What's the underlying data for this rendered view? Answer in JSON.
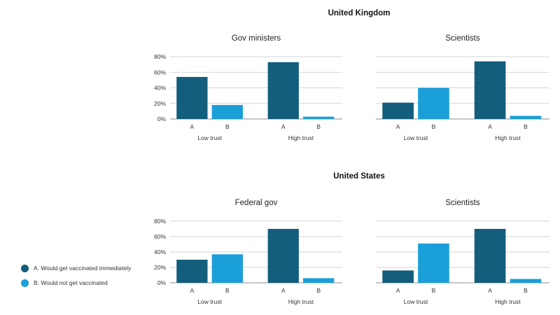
{
  "colors": {
    "A": "#135e7c",
    "B": "#1a9fd8",
    "grid": "#c9c9c9",
    "axis": "#8c8c8c"
  },
  "legend": {
    "items": [
      {
        "key": "A",
        "label": "A. Would get vaccinated immediately"
      },
      {
        "key": "B",
        "label": "B. Would not get vaccinated"
      }
    ]
  },
  "chart_data": [
    {
      "type": "bar",
      "country": "United Kingdom",
      "title": "Gov ministers",
      "groups": [
        "Low trust",
        "High trust"
      ],
      "categories": [
        "A",
        "B"
      ],
      "series": [
        {
          "group": "Low trust",
          "values": [
            54,
            18
          ]
        },
        {
          "group": "High trust",
          "values": [
            73,
            3
          ]
        }
      ],
      "yticks": [
        "80%",
        "60%",
        "40%",
        "20%",
        "0%"
      ],
      "ylim": [
        0,
        80
      ],
      "grid": true
    },
    {
      "type": "bar",
      "country": "United Kingdom",
      "title": "Scientists",
      "groups": [
        "Low trust",
        "High trust"
      ],
      "categories": [
        "A",
        "B"
      ],
      "series": [
        {
          "group": "Low trust",
          "values": [
            21,
            40
          ]
        },
        {
          "group": "High trust",
          "values": [
            74,
            4
          ]
        }
      ],
      "yticks": [
        "80%",
        "60%",
        "40%",
        "20%",
        "0%"
      ],
      "ylim": [
        0,
        80
      ],
      "grid": true
    },
    {
      "type": "bar",
      "country": "United States",
      "title": "Federal gov",
      "groups": [
        "Low trust",
        "High trust"
      ],
      "categories": [
        "A",
        "B"
      ],
      "series": [
        {
          "group": "Low trust",
          "values": [
            30,
            37
          ]
        },
        {
          "group": "High trust",
          "values": [
            70,
            6
          ]
        }
      ],
      "yticks": [
        "80%",
        "60%",
        "40%",
        "20%",
        "0%"
      ],
      "ylim": [
        0,
        80
      ],
      "grid": true
    },
    {
      "type": "bar",
      "country": "United States",
      "title": "Scientists",
      "groups": [
        "Low trust",
        "High trust"
      ],
      "categories": [
        "A",
        "B"
      ],
      "series": [
        {
          "group": "Low trust",
          "values": [
            16,
            51
          ]
        },
        {
          "group": "High trust",
          "values": [
            70,
            5
          ]
        }
      ],
      "yticks": [
        "80%",
        "60%",
        "40%",
        "20%",
        "0%"
      ],
      "ylim": [
        0,
        80
      ],
      "grid": true
    }
  ]
}
